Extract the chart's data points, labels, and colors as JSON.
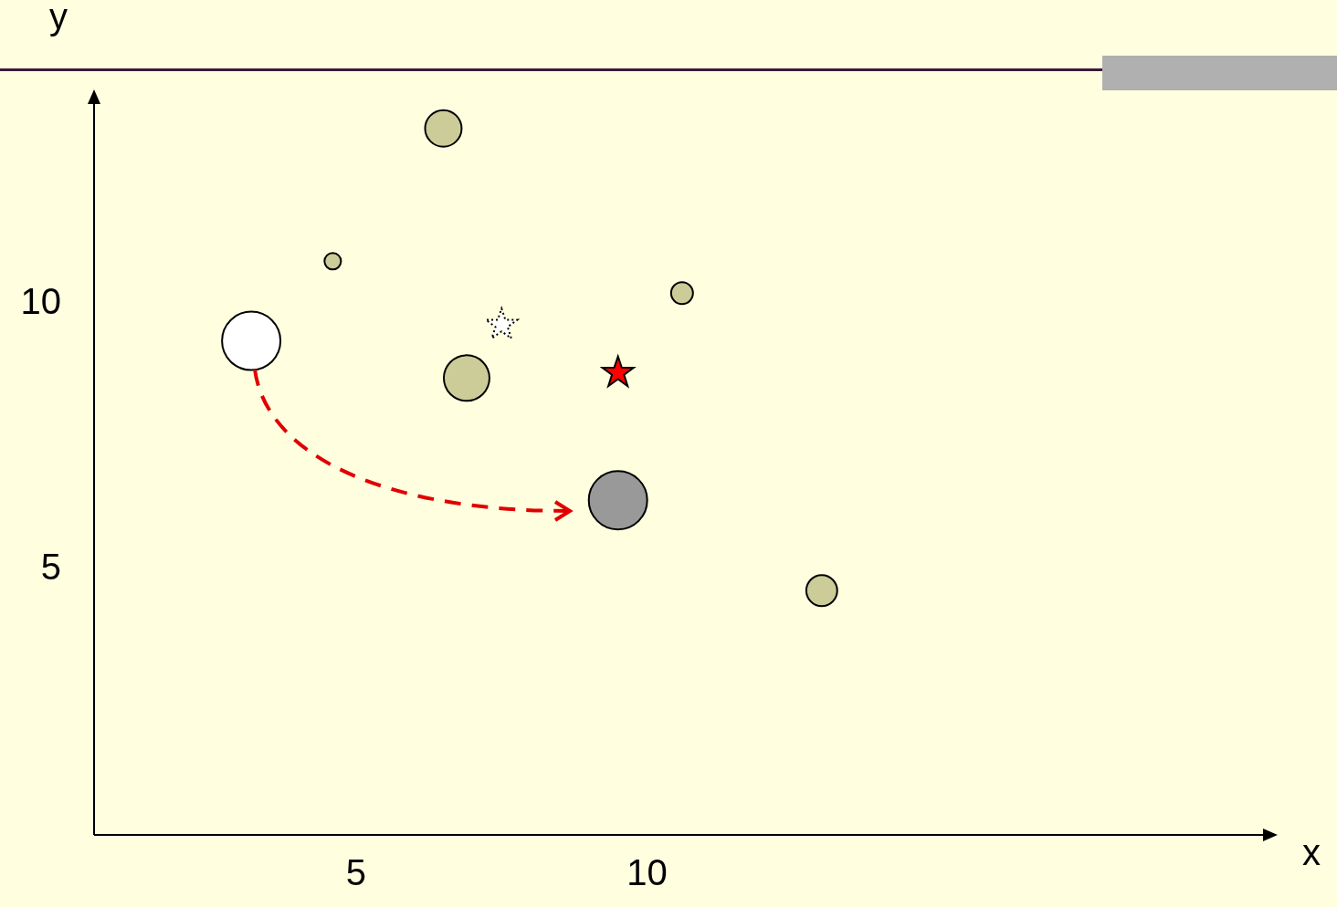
{
  "chart_data": {
    "type": "bubble",
    "xlabel": "x",
    "ylabel": "y",
    "xlim": [
      0.5,
      20.8
    ],
    "ylim": [
      0,
      14
    ],
    "xticks": [
      5,
      10
    ],
    "yticks": [
      5,
      10
    ],
    "grid": false,
    "legend": false,
    "series": [
      {
        "color": "#cccc99",
        "x": [
          6.5,
          4.6,
          6.9,
          10.6,
          13.0
        ],
        "values": [
          13.3,
          10.8,
          8.6,
          10.2,
          4.6
        ],
        "sizes": [
          0.39,
          0.08,
          0.61,
          0.14,
          0.28
        ]
      },
      {
        "color": "#ffffff",
        "x": [
          3.2
        ],
        "values": [
          9.3
        ],
        "sizes": [
          1
        ],
        "line_style": "dotted"
      },
      {
        "color": "#999999",
        "x": [
          9.5
        ],
        "values": [
          6.3
        ],
        "sizes": [
          1
        ]
      },
      {
        "type": "scatter",
        "marker": "star",
        "color": "#ffffff",
        "x": [
          7.5
        ],
        "values": [
          9.6
        ],
        "line_style": "dotted"
      },
      {
        "type": "scatter",
        "marker": "star",
        "color": "#ff0000",
        "x": [
          9.5
        ],
        "values": [
          8.7
        ]
      }
    ]
  }
}
